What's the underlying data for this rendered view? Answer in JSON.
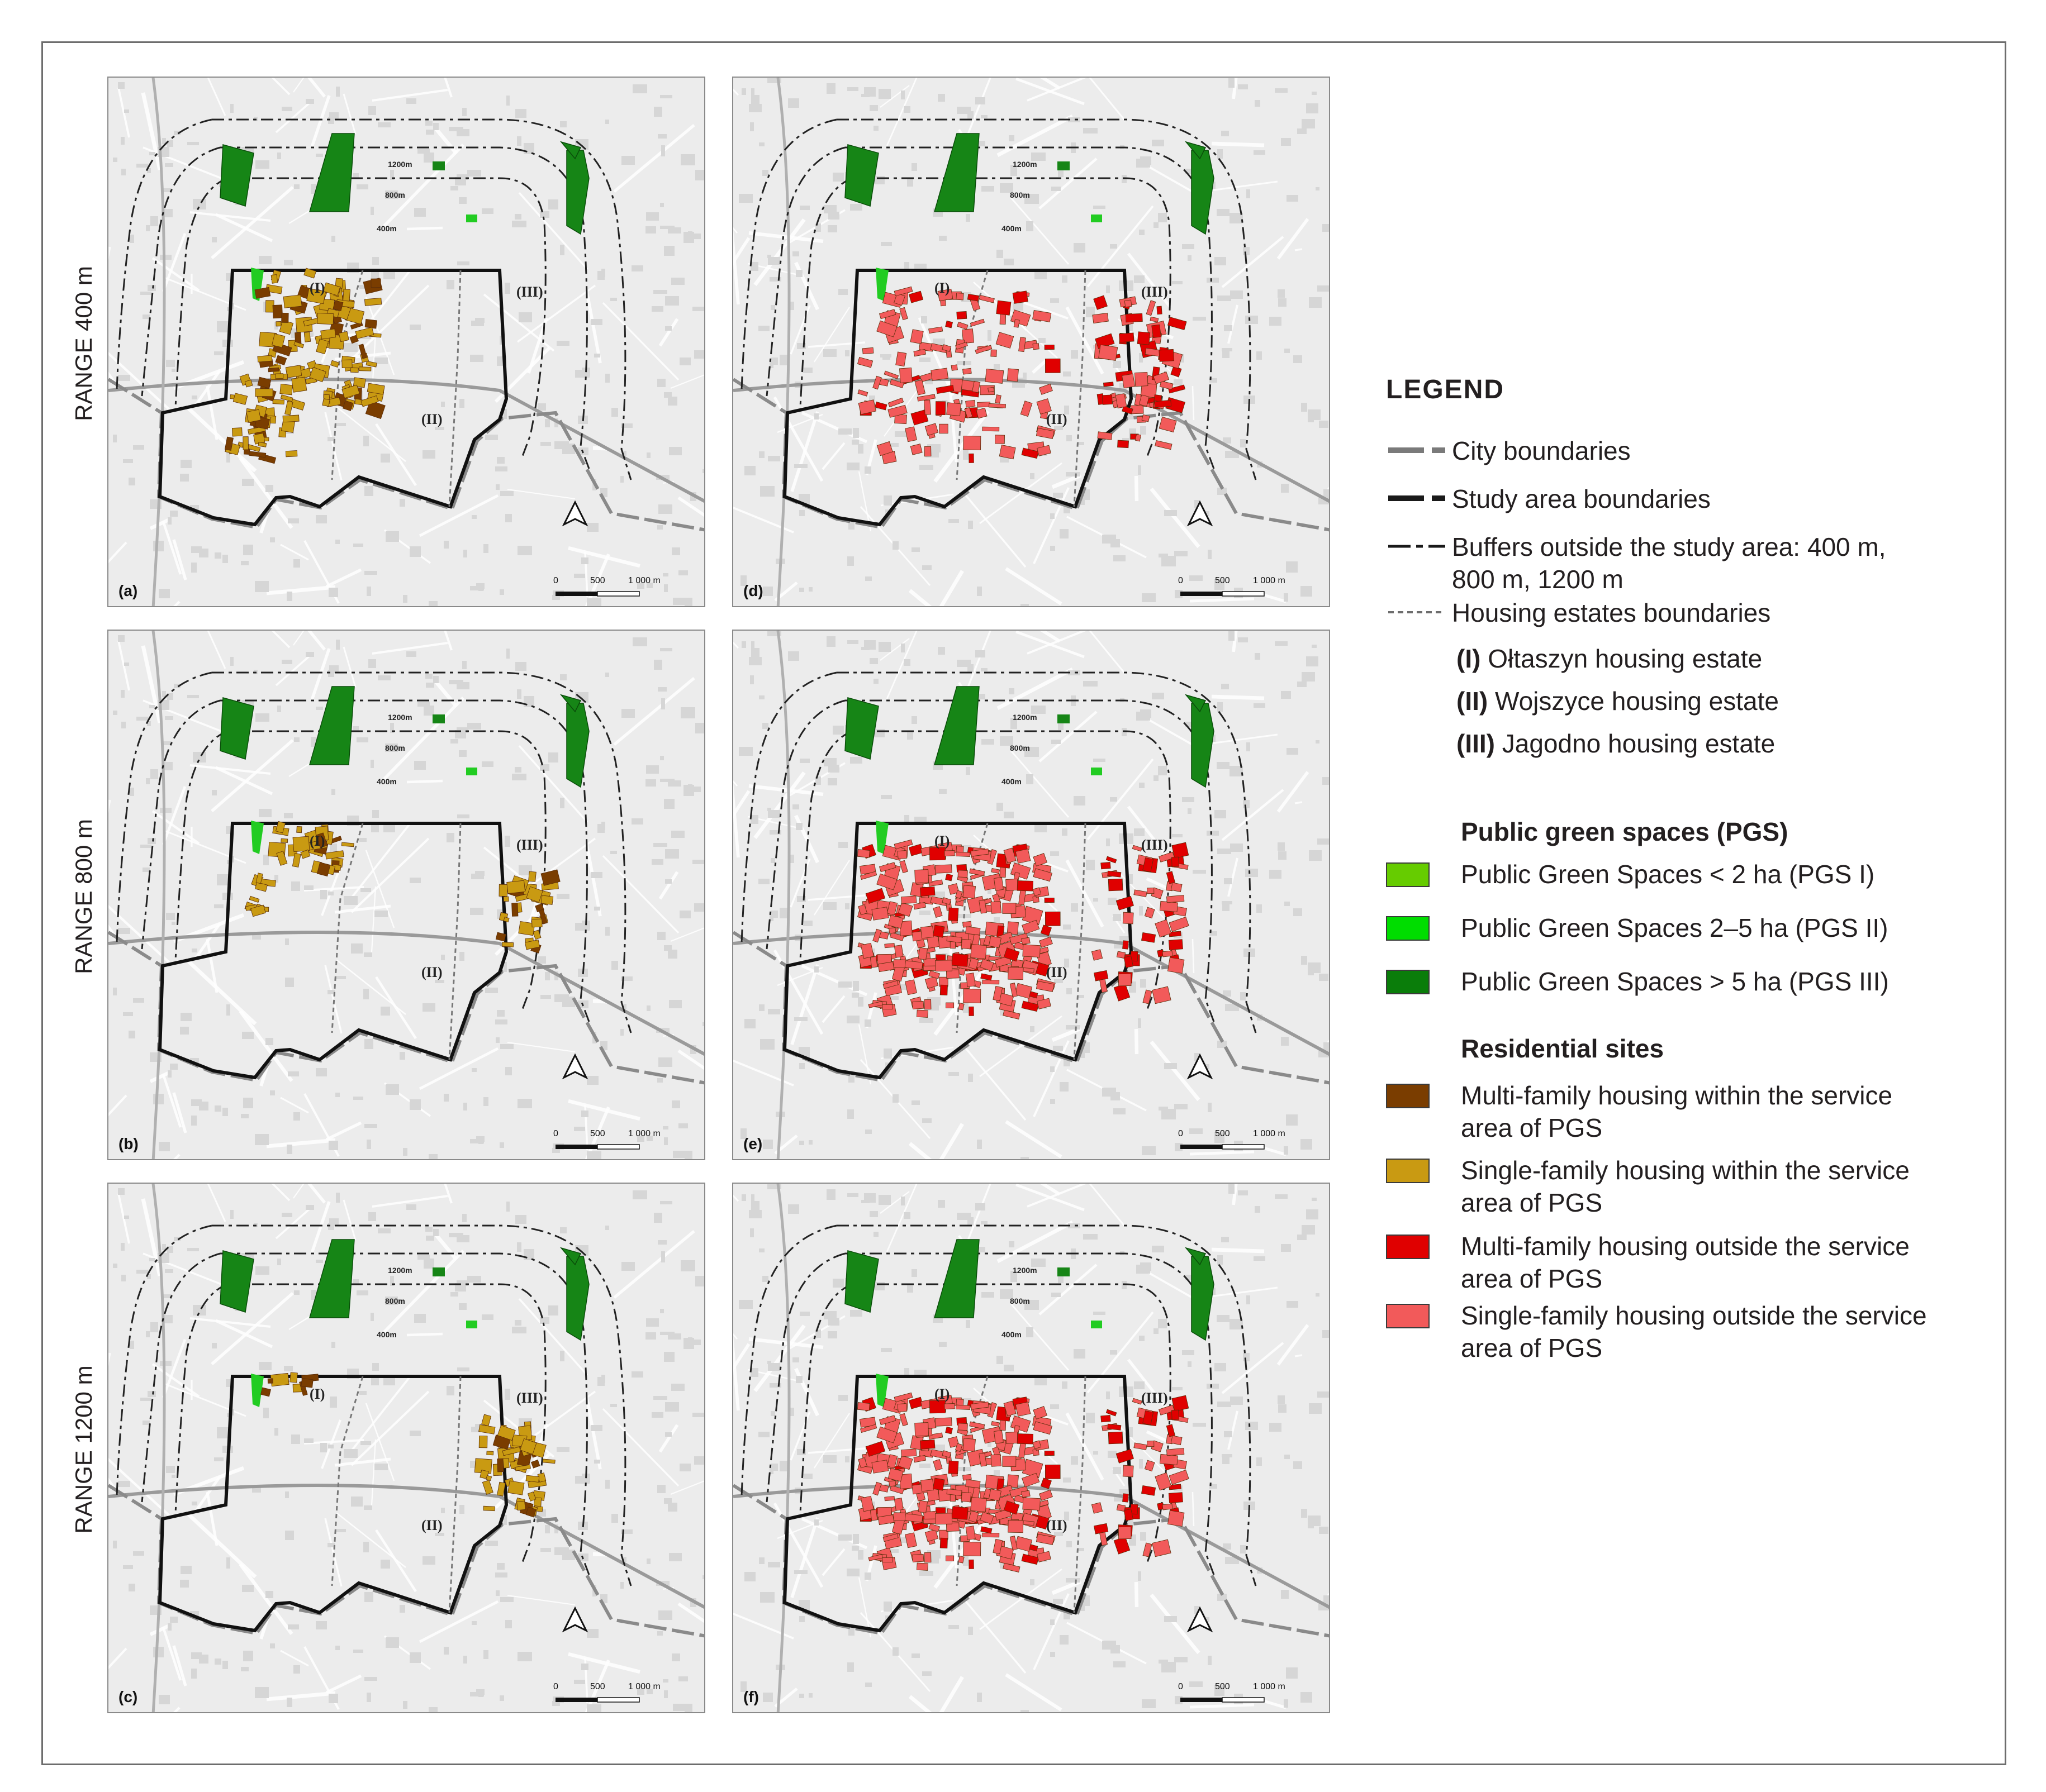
{
  "row_labels": [
    "RANGE 400 m",
    "RANGE 800 m",
    "RANGE 1200 m"
  ],
  "panels": [
    {
      "label": "(a)",
      "range": 400,
      "mode": "within"
    },
    {
      "label": "(d)",
      "range": 400,
      "mode": "outside"
    },
    {
      "label": "(b)",
      "range": 800,
      "mode": "within"
    },
    {
      "label": "(e)",
      "range": 800,
      "mode": "outside"
    },
    {
      "label": "(c)",
      "range": 1200,
      "mode": "within"
    },
    {
      "label": "(f)",
      "range": 1200,
      "mode": "outside"
    }
  ],
  "map_text": {
    "buffer_labels": [
      "1200m",
      "800m",
      "400m"
    ],
    "estates": [
      "(I)",
      "(II)",
      "(III)"
    ],
    "scale": [
      "0",
      "500",
      "1 000 m"
    ]
  },
  "legend": {
    "title": "LEGEND",
    "lines": [
      {
        "label": "City boundaries"
      },
      {
        "label": "Study area boundaries"
      },
      {
        "label": "Buffers outside the study area: 400 m,",
        "label2": "800 m, 1200 m"
      },
      {
        "label": "Housing estates boundaries"
      }
    ],
    "estates": [
      {
        "num": "(I)",
        "name": "Ołtaszyn housing estate"
      },
      {
        "num": "(II)",
        "name": "Wojszyce housing estate"
      },
      {
        "num": "(III)",
        "name": "Jagodno housing estate"
      }
    ],
    "pgs_heading": "Public green spaces (PGS)",
    "pgs": [
      {
        "label": "Public Green Spaces < 2 ha (PGS I)",
        "color": "#66cc00"
      },
      {
        "label": "Public Green Spaces 2–5 ha (PGS II)",
        "color": "#00dd00"
      },
      {
        "label": "Public Green Spaces > 5 ha (PGS III)",
        "color": "#0a7d0a"
      }
    ],
    "res_heading": "Residential sites",
    "res": [
      {
        "label": "Multi-family housing within the service",
        "label2": " area of PGS",
        "color": "#7a3d00"
      },
      {
        "label": "Single-family housing within the service",
        "label2": "area of PGS",
        "color": "#c99a12"
      },
      {
        "label": "Multi-family housing outside the service",
        "label2": "area of PGS",
        "color": "#e00000"
      },
      {
        "label": "Single-family housing outside the service",
        "label2": "area of PGS",
        "color": "#f25a5a"
      }
    ]
  },
  "colors": {
    "pgs_large": "#168516",
    "pgs_small": "#22cc22",
    "within_single": "#c99a12",
    "within_multi": "#7a3d00",
    "outside_single": "#f25a5a",
    "outside_multi": "#e00000",
    "map_bg": "#ececec",
    "road": "#ffffff"
  }
}
